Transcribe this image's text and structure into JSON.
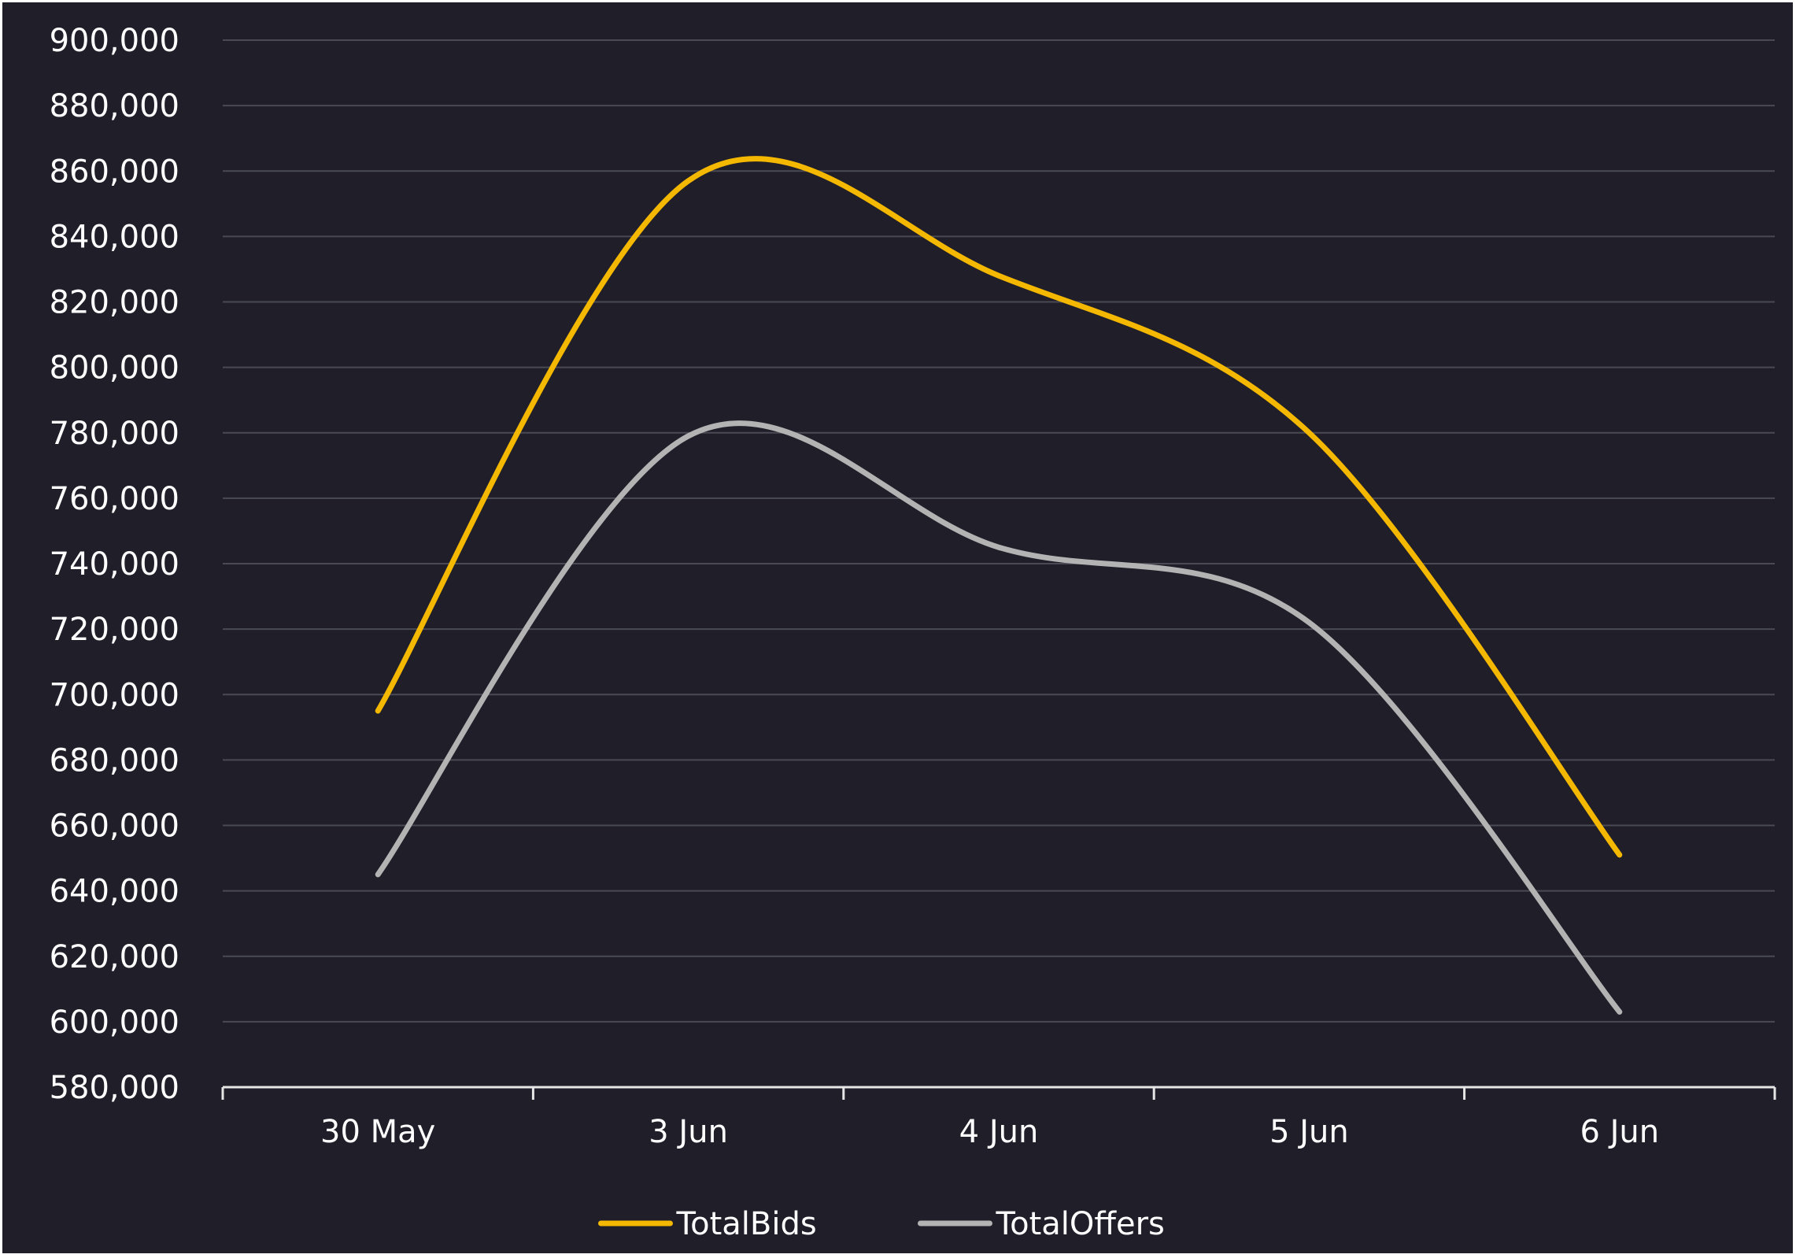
{
  "chart_data": {
    "type": "line",
    "smooth": true,
    "title": "",
    "xlabel": "",
    "ylabel": "",
    "categories": [
      "30 May",
      "3 Jun",
      "4 Jun",
      "5 Jun",
      "6 Jun"
    ],
    "ylim": [
      580000,
      900000
    ],
    "ytick_step": 20000,
    "grid": true,
    "legend": "bottom-center",
    "background": "#1f1e29",
    "grid_color": "#4a4a54",
    "axis_color": "#e6e6e6",
    "series": [
      {
        "name": "TotalBids",
        "color": "#f5b800",
        "values": [
          695000,
          857000,
          828000,
          780000,
          651000
        ]
      },
      {
        "name": "TotalOffers",
        "color": "#b3b3b3",
        "values": [
          645000,
          779000,
          745000,
          722000,
          603000
        ]
      }
    ]
  }
}
